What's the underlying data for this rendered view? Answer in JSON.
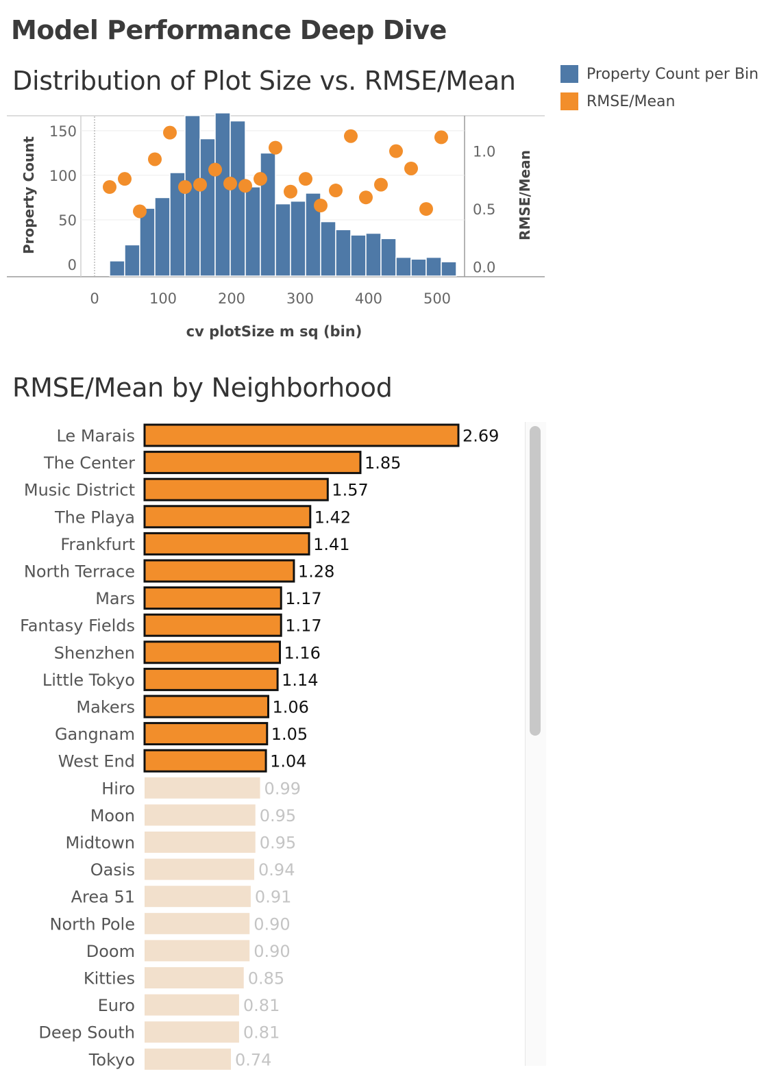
{
  "dashboard": {
    "title": "Model Performance Deep Dive"
  },
  "legend": {
    "items": [
      {
        "label": "Property Count per Bin",
        "color": "#4e79a7"
      },
      {
        "label": "RMSE/Mean",
        "color": "#f28e2b"
      }
    ]
  },
  "chart_data": [
    {
      "type": "bar",
      "subtype": "histogram with dual-axis scatter",
      "title": "Distribution of Plot Size vs. RMSE/Mean",
      "xlabel": "cv plotSize m sq (bin)",
      "ylabel": "Property Count",
      "y2label": "RMSE/Mean",
      "xlim": [
        -20,
        540
      ],
      "ylim": [
        -13,
        166
      ],
      "y2lim": [
        -0.08,
        1.3
      ],
      "x_ticks": [
        0,
        100,
        200,
        300,
        400,
        500
      ],
      "y_ticks": [
        0,
        50,
        100,
        150
      ],
      "y2_ticks": [
        "0.0",
        "0.5",
        "1.0"
      ],
      "bin_width": 22,
      "series": [
        {
          "name": "Property Count per Bin",
          "kind": "bar",
          "color": "#4e79a7",
          "bin_starts": [
            22,
            44,
            66,
            88,
            110,
            132,
            154,
            176,
            198,
            220,
            242,
            264,
            286,
            308,
            330,
            352,
            374,
            396,
            418,
            440,
            462,
            484,
            506
          ],
          "values": [
            4,
            22,
            63,
            75,
            103,
            167,
            141,
            170,
            161,
            87,
            125,
            68,
            71,
            80,
            48,
            39,
            33,
            35,
            29,
            8,
            6,
            8,
            3
          ]
        },
        {
          "name": "RMSE/Mean",
          "kind": "scatter",
          "color": "#f28e2b",
          "axis": "secondary",
          "x": [
            22,
            44,
            66,
            88,
            110,
            132,
            154,
            176,
            198,
            220,
            242,
            264,
            286,
            308,
            330,
            352,
            374,
            396,
            418,
            440,
            462,
            484,
            506
          ],
          "values": [
            0.69,
            0.76,
            0.48,
            0.93,
            1.16,
            0.69,
            0.71,
            0.84,
            0.72,
            0.7,
            0.76,
            1.03,
            0.65,
            0.76,
            0.53,
            0.66,
            1.13,
            0.6,
            0.71,
            1.0,
            0.85,
            0.5,
            1.12
          ]
        }
      ]
    },
    {
      "type": "bar",
      "orientation": "horizontal",
      "title": "RMSE/Mean by Neighborhood",
      "xlim": [
        0,
        2.69
      ],
      "highlight_threshold": 1.0,
      "highlight_color": "#f28e2b",
      "muted_color": "#f2e0cc",
      "categories": [
        "Le Marais",
        "The Center",
        "Music District",
        "The Playa",
        "Frankfurt",
        "North Terrace",
        "Mars",
        "Fantasy Fields",
        "Shenzhen",
        "Little Tokyo",
        "Makers",
        "Gangnam",
        "West End",
        "Hiro",
        "Moon",
        "Midtown",
        "Oasis",
        "Area 51",
        "North Pole",
        "Doom",
        "Kitties",
        "Euro",
        "Deep South",
        "Tokyo"
      ],
      "values": [
        2.69,
        1.85,
        1.57,
        1.42,
        1.41,
        1.28,
        1.17,
        1.17,
        1.16,
        1.14,
        1.06,
        1.05,
        1.04,
        0.99,
        0.95,
        0.95,
        0.94,
        0.91,
        0.9,
        0.9,
        0.85,
        0.81,
        0.81,
        0.74
      ],
      "labels": [
        "2.69",
        "1.85",
        "1.57",
        "1.42",
        "1.41",
        "1.28",
        "1.17",
        "1.17",
        "1.16",
        "1.14",
        "1.06",
        "1.05",
        "1.04",
        "0.99",
        "0.95",
        "0.95",
        "0.94",
        "0.91",
        "0.90",
        "0.90",
        "0.85",
        "0.81",
        "0.81",
        "0.74"
      ]
    }
  ]
}
